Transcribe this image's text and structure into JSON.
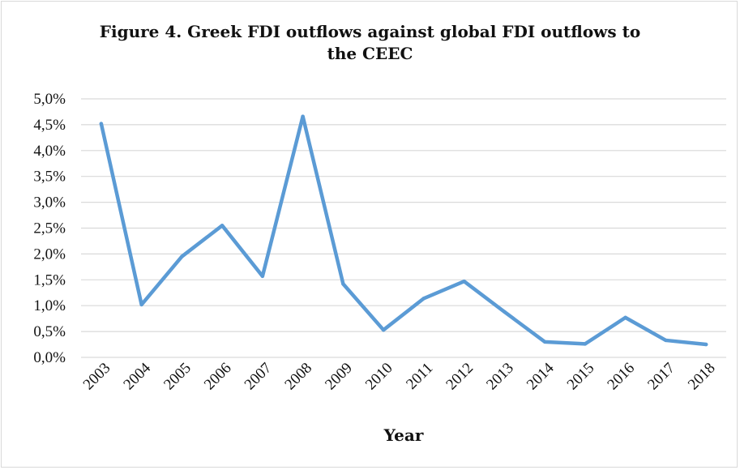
{
  "chart_data": {
    "type": "line",
    "title_line1": "Figure 4. Greek FDI outflows against global FDI outflows to",
    "title_line2": "the CEEC",
    "xlabel": "Year",
    "ylabel": "",
    "x": [
      "2003",
      "2004",
      "2005",
      "2006",
      "2007",
      "2008",
      "2009",
      "2010",
      "2011",
      "2012",
      "2013",
      "2014",
      "2015",
      "2016",
      "2017",
      "2018"
    ],
    "series": [
      {
        "name": "",
        "values": [
          4.52,
          1.02,
          1.95,
          2.55,
          1.57,
          4.66,
          1.42,
          0.53,
          1.14,
          1.47,
          0.88,
          0.3,
          0.26,
          0.77,
          0.33,
          0.25
        ]
      }
    ],
    "y_ticks": [
      "0,0%",
      "0,5%",
      "1,0%",
      "1,5%",
      "2,0%",
      "2,5%",
      "3,0%",
      "3,5%",
      "4,0%",
      "4,5%",
      "5,0%"
    ],
    "ylim": [
      0,
      5
    ],
    "y_unit": "%",
    "grid": true,
    "legend": "none",
    "colors": {
      "line": "#5b9bd5",
      "grid": "#d9d9d9",
      "text": "#111111"
    }
  }
}
